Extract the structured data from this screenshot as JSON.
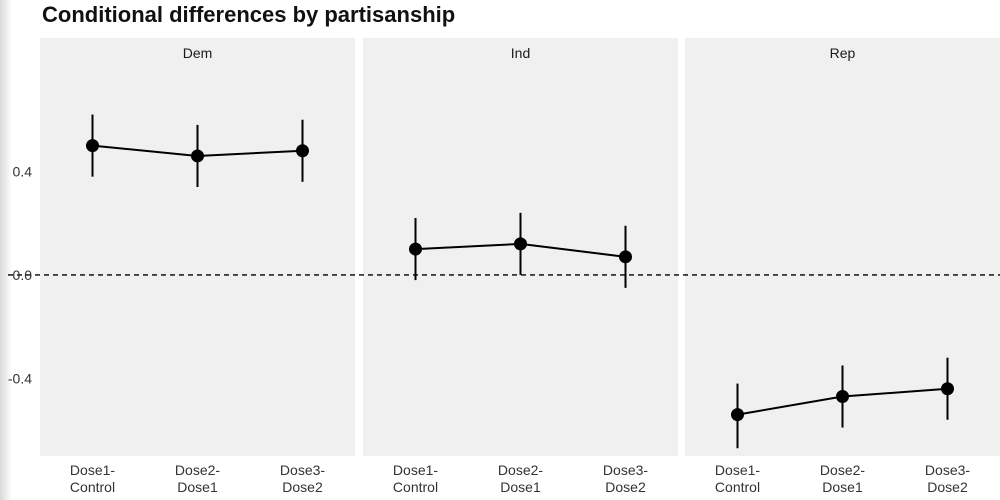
{
  "chart_data": {
    "type": "scatter",
    "title": "Conditional differences by partisanship",
    "xlabel": "",
    "ylabel": "",
    "ylim": [
      -0.7,
      0.8
    ],
    "yticks": [
      0.4,
      0.0,
      -0.4
    ],
    "ytick_labels": [
      "0.4",
      "0.0",
      "-0.4"
    ],
    "reference_line": 0.0,
    "categories": [
      "Dose1-\nControl",
      "Dose2-\nDose1",
      "Dose3-\nDose2"
    ],
    "panels": [
      {
        "name": "Dem",
        "values": [
          0.5,
          0.46,
          0.48
        ],
        "lower": [
          0.38,
          0.34,
          0.36
        ],
        "upper": [
          0.62,
          0.58,
          0.6
        ]
      },
      {
        "name": "Ind",
        "values": [
          0.1,
          0.12,
          0.07
        ],
        "lower": [
          -0.02,
          0.0,
          -0.05
        ],
        "upper": [
          0.22,
          0.24,
          0.19
        ]
      },
      {
        "name": "Rep",
        "values": [
          -0.54,
          -0.47,
          -0.44
        ],
        "lower": [
          -0.67,
          -0.59,
          -0.56
        ],
        "upper": [
          -0.42,
          -0.35,
          -0.32
        ]
      }
    ],
    "grid": false,
    "colors": {
      "panel_background": "#f0f0f0",
      "points": "#000000",
      "reference_line": "#000000"
    }
  }
}
